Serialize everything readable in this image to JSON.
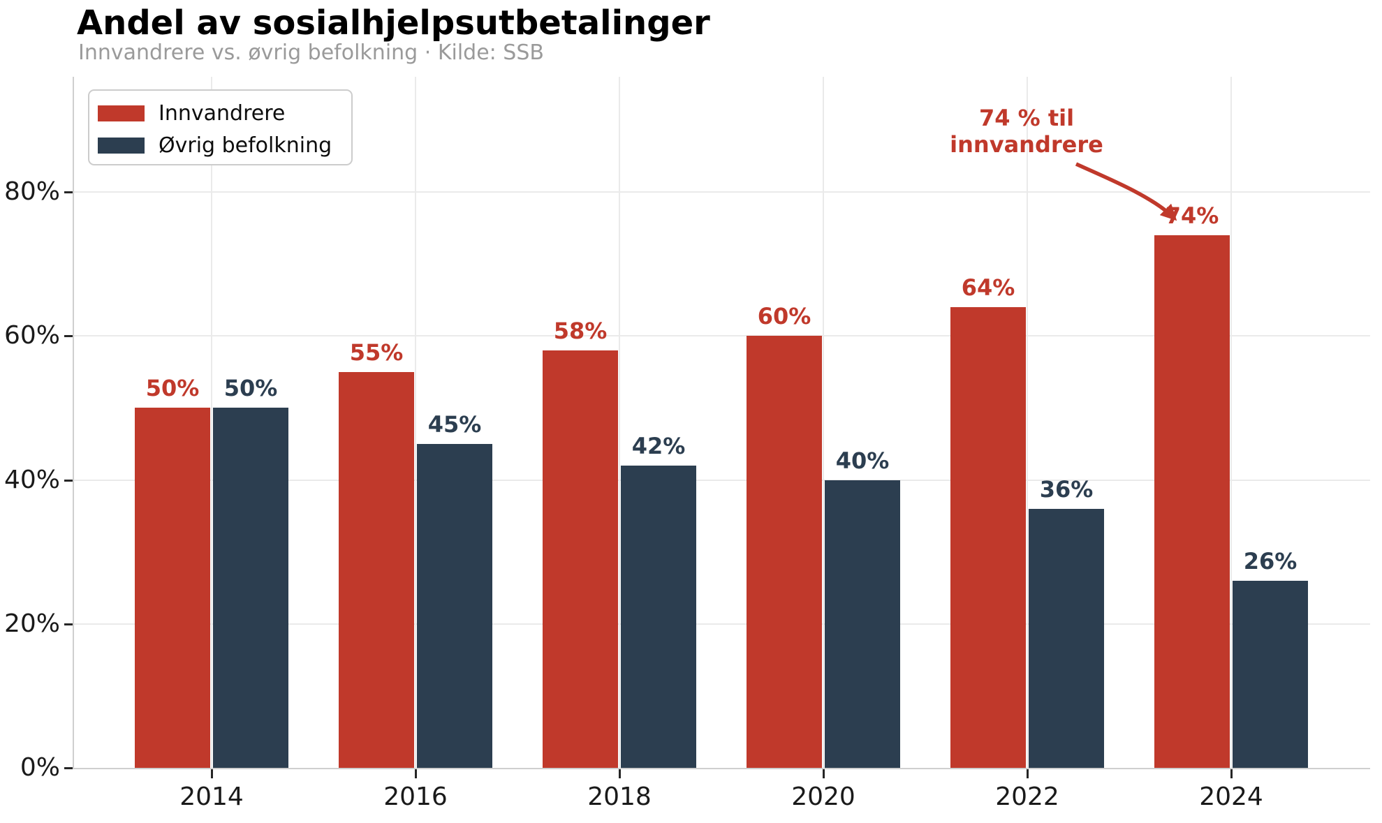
{
  "header": {
    "title": "Andel av sosialhjelpsutbetalinger",
    "subtitle": "Innvandrere vs. øvrig befolkning · Kilde: SSB"
  },
  "colors": {
    "innvandrere": "#c0392b",
    "ovrig_befolkning": "#2c3e50",
    "grid": "#eaeaea",
    "spine": "#cfcfcf",
    "tick_label": "#1a1a1a",
    "subtitle": "#9a9a9a",
    "annotation": "#c0392b",
    "background": "#ffffff"
  },
  "legend": {
    "items": [
      {
        "label": "Innvandrere",
        "color": "#c0392b"
      },
      {
        "label": "Øvrig befolkning",
        "color": "#2c3e50"
      }
    ]
  },
  "annotation": {
    "line1": "74 % til",
    "line2": "innvandrere",
    "color": "#c0392b"
  },
  "chart_data": {
    "type": "bar",
    "title": "Andel av sosialhjelpsutbetalinger",
    "subtitle": "Innvandrere vs. øvrig befolkning · Kilde: SSB",
    "categories": [
      "2014",
      "2016",
      "2018",
      "2020",
      "2022",
      "2024"
    ],
    "series": [
      {
        "name": "Innvandrere",
        "color": "#c0392b",
        "values": [
          50,
          55,
          58,
          60,
          64,
          74
        ],
        "labels": [
          "50%",
          "55%",
          "58%",
          "60%",
          "64%",
          "74%"
        ]
      },
      {
        "name": "Øvrig befolkning",
        "color": "#2c3e50",
        "values": [
          50,
          45,
          42,
          40,
          36,
          26
        ],
        "labels": [
          "50%",
          "45%",
          "42%",
          "40%",
          "36%",
          "26%"
        ]
      }
    ],
    "xlabel": "",
    "ylabel": "",
    "yticks": [
      0,
      20,
      40,
      60,
      80
    ],
    "ytick_labels": [
      "0%",
      "20%",
      "40%",
      "60%",
      "80%"
    ],
    "ylim": [
      0,
      96
    ],
    "grid": true,
    "legend_position": "upper-left",
    "annotation_text": "74 % til innvandrere",
    "annotation_points_to": "74%"
  }
}
